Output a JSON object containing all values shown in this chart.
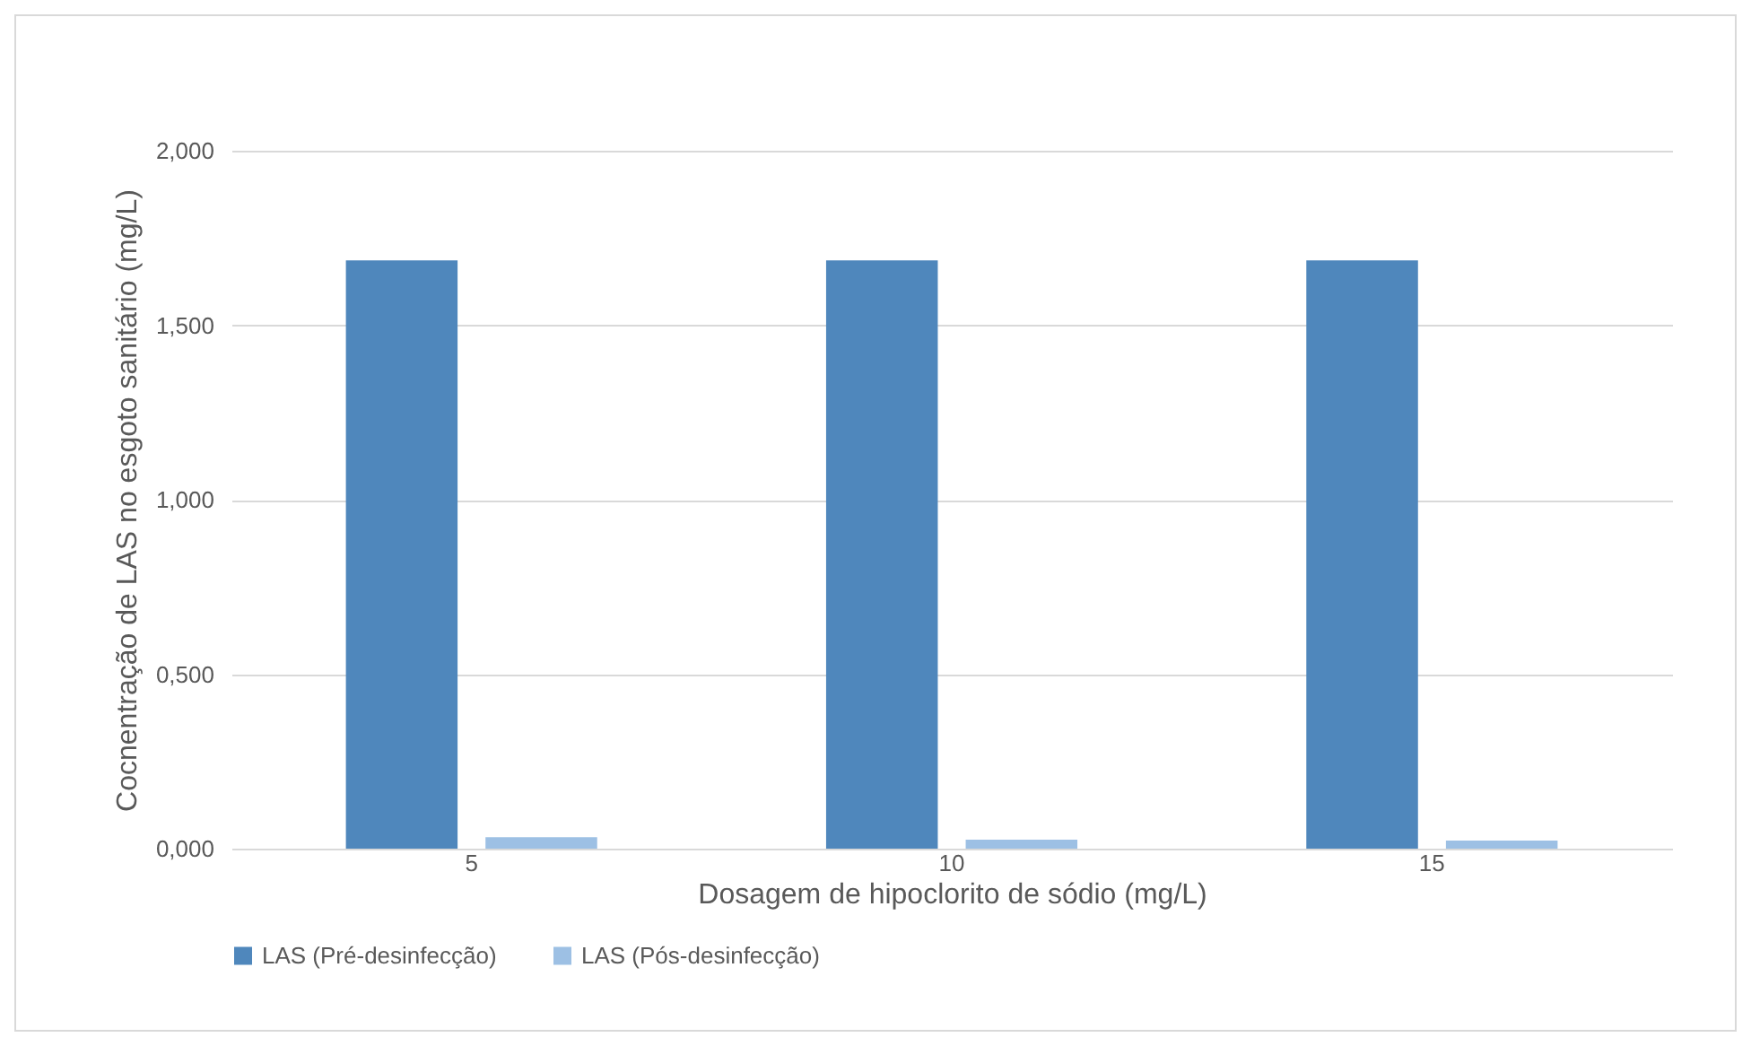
{
  "chart_data": {
    "type": "bar",
    "xlabel": "Dosagem de hipoclorito de sódio (mg/L)",
    "ylabel": "Cocnentração de LAS no esgoto sanitário (mg/L)",
    "categories": [
      "5",
      "10",
      "15"
    ],
    "series": [
      {
        "name": "LAS (Pré-desinfecção)",
        "color": "#4f87bc",
        "values": [
          1.686,
          1.686,
          1.686
        ]
      },
      {
        "name": "LAS (Pós-desinfecção)",
        "color": "#9dc0e4",
        "values": [
          0.033,
          0.026,
          0.023
        ]
      }
    ],
    "ylim": [
      0,
      2
    ],
    "yticks": [
      {
        "value": 0,
        "label": "0,000"
      },
      {
        "value": 0.5,
        "label": "0,500"
      },
      {
        "value": 1,
        "label": "1,000"
      },
      {
        "value": 1.5,
        "label": "1,500"
      },
      {
        "value": 2,
        "label": "2,000"
      }
    ],
    "grid": "y",
    "legend": "bottom"
  }
}
